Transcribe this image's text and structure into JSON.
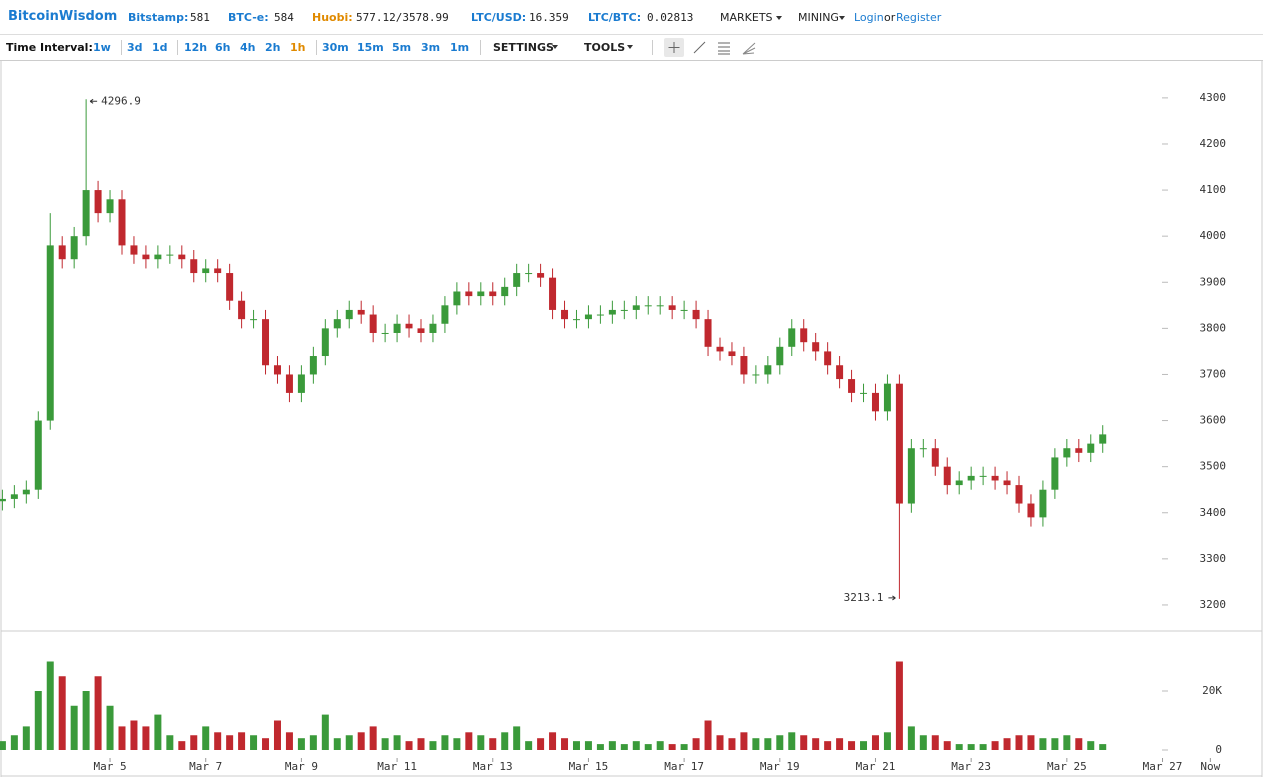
{
  "header": {
    "brand": "BitcoinWisdom",
    "tickers": [
      {
        "label": "Bitstamp:",
        "value": 581
      },
      {
        "label": "BTC-e:",
        "value": 584
      },
      {
        "label": "Huobi:",
        "value": "577.12/3578.99"
      },
      {
        "label": "LTC/USD:",
        "value": 16.359
      },
      {
        "label": "LTC/BTC:",
        "value": 0.02813
      }
    ],
    "menus": [
      "MARKETS",
      "MINING"
    ],
    "login": "Login",
    "or": "or",
    "register": "Register"
  },
  "toolbar": {
    "label": "Time Interval:",
    "intervals": [
      "1w",
      "3d",
      "1d",
      "12h",
      "6h",
      "4h",
      "2h",
      "1h",
      "30m",
      "15m",
      "5m",
      "3m",
      "1m"
    ],
    "settings": "SETTINGS",
    "tools": "TOOLS"
  },
  "chart_data": {
    "type": "candlestick",
    "categories": [
      null,
      null,
      null,
      null,
      null,
      null,
      null,
      null,
      null,
      "Mar 5",
      null,
      null,
      null,
      null,
      null,
      null,
      null,
      "Mar 7",
      null,
      null,
      null,
      null,
      null,
      null,
      null,
      "Mar 9",
      null,
      null,
      null,
      null,
      null,
      null,
      null,
      "Mar 11",
      null,
      null,
      null,
      null,
      null,
      null,
      null,
      "Mar 13",
      null,
      null,
      null,
      null,
      null,
      null,
      null,
      "Mar 15",
      null,
      null,
      null,
      null,
      null,
      null,
      null,
      "Mar 17",
      null,
      null,
      null,
      null,
      null,
      null,
      null,
      "Mar 19",
      null,
      null,
      null,
      null,
      null,
      null,
      null,
      "Mar 21",
      null,
      null,
      null,
      null,
      null,
      null,
      null,
      "Mar 23",
      null,
      null,
      null,
      null,
      null,
      null,
      null,
      "Mar 25",
      null,
      null,
      null,
      null,
      null,
      null,
      null,
      "Mar 27",
      null,
      null,
      null,
      "Now"
    ],
    "open": [
      3425,
      3430,
      3440,
      3450,
      3600,
      3980,
      3950,
      4000,
      4100,
      4050,
      4080,
      3980,
      3960,
      3950,
      3960,
      3960,
      3950,
      3920,
      3930,
      3920,
      3860,
      3820,
      3820,
      3720,
      3700,
      3660,
      3700,
      3740,
      3800,
      3820,
      3840,
      3830,
      3790,
      3790,
      3810,
      3800,
      3790,
      3810,
      3850,
      3880,
      3870,
      3880,
      3870,
      3890,
      3920,
      3920,
      3910,
      3840,
      3820,
      3820,
      3830,
      3830,
      3840,
      3840,
      3850,
      3850,
      3850,
      3840,
      3840,
      3820,
      3760,
      3750,
      3740,
      3700,
      3700,
      3720,
      3760,
      3800,
      3770,
      3750,
      3720,
      3690,
      3660,
      3660,
      3620,
      3680,
      3420,
      3540,
      3540,
      3500,
      3460,
      3470,
      3480,
      3480,
      3470,
      3460,
      3420,
      3390,
      3450,
      3520,
      3540,
      3530,
      3550,
      null,
      null,
      null,
      null,
      null,
      null,
      null,
      null,
      null
    ],
    "high": [
      3450,
      3460,
      3470,
      3620,
      4050,
      4000,
      4020,
      4296.9,
      4120,
      4100,
      4100,
      4000,
      3980,
      3980,
      3980,
      3980,
      3970,
      3950,
      3950,
      3940,
      3880,
      3840,
      3840,
      3740,
      3720,
      3720,
      3760,
      3820,
      3840,
      3860,
      3860,
      3850,
      3810,
      3830,
      3830,
      3820,
      3830,
      3870,
      3900,
      3900,
      3900,
      3900,
      3910,
      3940,
      3940,
      3940,
      3930,
      3860,
      3840,
      3850,
      3850,
      3860,
      3860,
      3870,
      3870,
      3870,
      3870,
      3860,
      3860,
      3840,
      3780,
      3770,
      3760,
      3720,
      3740,
      3780,
      3820,
      3820,
      3790,
      3770,
      3740,
      3710,
      3680,
      3680,
      3700,
      3700,
      3560,
      3560,
      3560,
      3520,
      3490,
      3500,
      3500,
      3500,
      3490,
      3480,
      3440,
      3470,
      3540,
      3560,
      3560,
      3570,
      3590,
      null,
      null,
      null,
      null,
      null,
      null,
      null,
      null,
      null
    ],
    "low": [
      3405,
      3410,
      3420,
      3430,
      3580,
      3930,
      3930,
      3980,
      4030,
      4030,
      3960,
      3940,
      3930,
      3930,
      3940,
      3930,
      3900,
      3900,
      3900,
      3840,
      3800,
      3800,
      3700,
      3680,
      3640,
      3640,
      3680,
      3720,
      3780,
      3800,
      3810,
      3770,
      3770,
      3770,
      3780,
      3770,
      3770,
      3790,
      3830,
      3850,
      3850,
      3850,
      3850,
      3870,
      3900,
      3890,
      3820,
      3800,
      3800,
      3800,
      3810,
      3810,
      3820,
      3820,
      3830,
      3830,
      3820,
      3820,
      3800,
      3740,
      3730,
      3720,
      3680,
      3680,
      3680,
      3700,
      3740,
      3750,
      3730,
      3700,
      3670,
      3640,
      3640,
      3600,
      3600,
      3213.1,
      3400,
      3520,
      3480,
      3440,
      3440,
      3450,
      3460,
      3450,
      3440,
      3400,
      3370,
      3370,
      3430,
      3500,
      3510,
      3510,
      3530,
      null,
      null,
      null,
      null,
      null,
      null,
      null,
      null,
      null
    ],
    "close": [
      3430,
      3440,
      3450,
      3600,
      3980,
      3950,
      4000,
      4100,
      4050,
      4080,
      3980,
      3960,
      3950,
      3960,
      3960,
      3950,
      3920,
      3930,
      3920,
      3860,
      3820,
      3820,
      3720,
      3700,
      3660,
      3700,
      3740,
      3800,
      3820,
      3840,
      3830,
      3790,
      3790,
      3810,
      3800,
      3790,
      3810,
      3850,
      3880,
      3870,
      3880,
      3870,
      3890,
      3920,
      3920,
      3910,
      3840,
      3820,
      3820,
      3830,
      3830,
      3840,
      3840,
      3850,
      3850,
      3850,
      3840,
      3840,
      3820,
      3760,
      3750,
      3740,
      3700,
      3700,
      3720,
      3760,
      3800,
      3770,
      3750,
      3720,
      3690,
      3660,
      3660,
      3620,
      3680,
      3420,
      3540,
      3540,
      3500,
      3460,
      3470,
      3480,
      3480,
      3470,
      3460,
      3420,
      3390,
      3450,
      3520,
      3540,
      3530,
      3550,
      3570,
      null,
      null,
      null,
      null,
      null,
      null,
      null,
      null,
      null
    ],
    "volume": [
      3000,
      5000,
      8000,
      20000,
      30000,
      25000,
      15000,
      20000,
      25000,
      15000,
      8000,
      10000,
      8000,
      12000,
      5000,
      3000,
      5000,
      8000,
      6000,
      5000,
      6000,
      5000,
      4000,
      10000,
      6000,
      4000,
      5000,
      12000,
      4000,
      5000,
      6000,
      8000,
      4000,
      5000,
      3000,
      4000,
      3000,
      5000,
      4000,
      6000,
      5000,
      4000,
      6000,
      8000,
      3000,
      4000,
      6000,
      4000,
      3000,
      3000,
      2000,
      3000,
      2000,
      3000,
      2000,
      3000,
      2000,
      2000,
      4000,
      10000,
      5000,
      4000,
      6000,
      4000,
      4000,
      5000,
      6000,
      5000,
      4000,
      3000,
      4000,
      3000,
      3000,
      5000,
      6000,
      30000,
      8000,
      5000,
      5000,
      3000,
      2000,
      2000,
      2000,
      3000,
      4000,
      5000,
      5000,
      4000,
      4000,
      5000,
      4000,
      3000,
      2000,
      null,
      null,
      null,
      null,
      null,
      null,
      null,
      null,
      null
    ],
    "ylim": [
      3150,
      4380
    ],
    "yticks": [
      3200,
      3300,
      3400,
      3500,
      3600,
      3700,
      3800,
      3900,
      4000,
      4100,
      4200,
      4300
    ],
    "volume_ylim": [
      0,
      40000
    ],
    "volume_yticks": [
      0,
      {
        "value": 20000,
        "label": "20K"
      }
    ],
    "up_color": "#3a9a3a",
    "down_color": "#c0282e"
  }
}
